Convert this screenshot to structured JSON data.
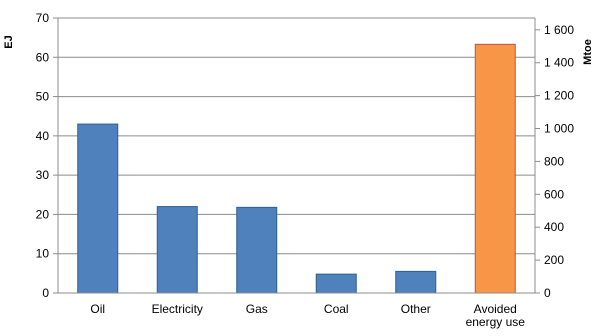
{
  "chart_data": {
    "type": "bar",
    "title": "",
    "categories": [
      "Oil",
      "Electricity",
      "Gas",
      "Coal",
      "Other",
      "Avoided energy use"
    ],
    "category_lines": [
      [
        "Oil"
      ],
      [
        "Electricity"
      ],
      [
        "Gas"
      ],
      [
        "Coal"
      ],
      [
        "Other"
      ],
      [
        "Avoided",
        "energy use"
      ]
    ],
    "values": [
      43,
      22,
      21.8,
      4.8,
      5.5,
      63.3
    ],
    "bar_colors": [
      "#4f81bd",
      "#4f81bd",
      "#4f81bd",
      "#4f81bd",
      "#4f81bd",
      "#f79646"
    ],
    "bar_stroke_colors": [
      "#2f5f8f",
      "#2f5f8f",
      "#2f5f8f",
      "#2f5f8f",
      "#2f5f8f",
      "#c0504d"
    ],
    "ylabel_left": "EJ",
    "ylabel_right": "Mtoe",
    "ylim_left": [
      0,
      70
    ],
    "yticks_left": [
      0,
      10,
      20,
      30,
      40,
      50,
      60,
      70
    ],
    "ylim_right": [
      0,
      1671.9
    ],
    "yticks_right": [
      "0",
      "200",
      "400",
      "600",
      "800",
      "1 000",
      "1 200",
      "1 400",
      "1 600"
    ],
    "yticks_right_values": [
      0,
      200,
      400,
      600,
      800,
      1000,
      1200,
      1400,
      1600
    ],
    "grid": true,
    "legend": "none"
  }
}
